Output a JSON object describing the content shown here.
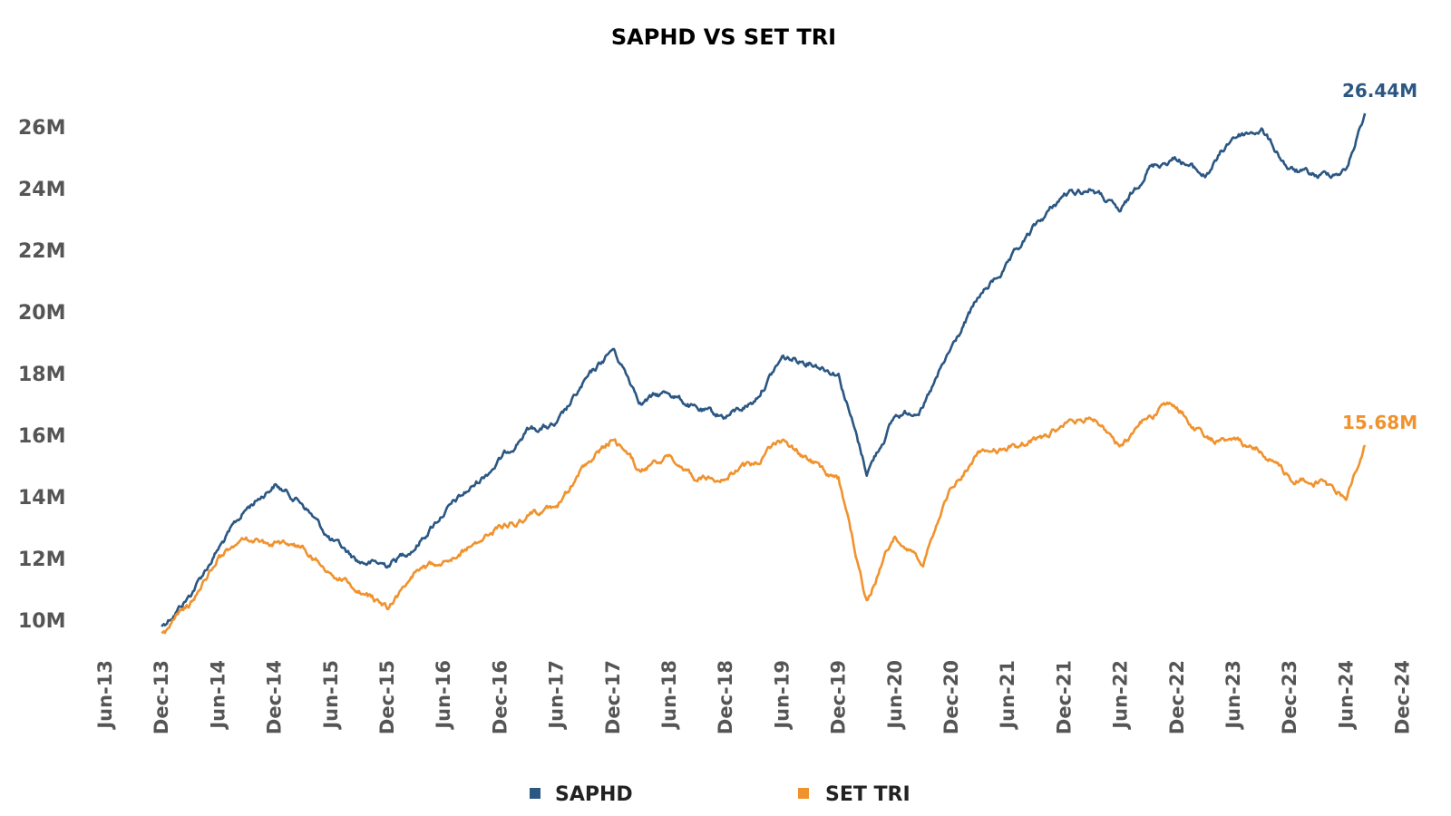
{
  "chart_data": {
    "type": "line",
    "title": "SAPHD VS SET TRI",
    "xlabel": "",
    "ylabel": "",
    "x_ticks": [
      "Jun-13",
      "Dec-13",
      "Jun-14",
      "Dec-14",
      "Jun-15",
      "Dec-15",
      "Jun-16",
      "Dec-16",
      "Jun-17",
      "Dec-17",
      "Jun-18",
      "Dec-18",
      "Jun-19",
      "Dec-19",
      "Jun-20",
      "Dec-20",
      "Jun-21",
      "Dec-21",
      "Jun-22",
      "Dec-22",
      "Jun-23",
      "Dec-23",
      "Jun-24",
      "Dec-24"
    ],
    "y_ticks": [
      "10M",
      "12M",
      "14M",
      "16M",
      "18M",
      "20M",
      "22M",
      "24M",
      "26M"
    ],
    "ylim": [
      9000000,
      27500000
    ],
    "grid": false,
    "legend_position": "bottom",
    "series": [
      {
        "name": "SAPHD",
        "color": "#2b5783",
        "end_label": "26.44M",
        "x": [
          "Dec-13",
          "Mar-14",
          "Jun-14",
          "Sep-14",
          "Dec-14",
          "Mar-15",
          "Jun-15",
          "Sep-15",
          "Dec-15",
          "Mar-16",
          "Jun-16",
          "Sep-16",
          "Dec-16",
          "Mar-17",
          "Jun-17",
          "Sep-17",
          "Dec-17",
          "Mar-18",
          "Jun-18",
          "Sep-18",
          "Dec-18",
          "Mar-19",
          "Jun-19",
          "Sep-19",
          "Dec-19",
          "Mar-20",
          "Jun-20",
          "Sep-20",
          "Dec-20",
          "Mar-21",
          "Jun-21",
          "Sep-21",
          "Dec-21",
          "Mar-22",
          "Jun-22",
          "Sep-22",
          "Dec-22",
          "Mar-23",
          "Jun-23",
          "Sep-23",
          "Dec-23",
          "Mar-24",
          "Jun-24",
          "Aug-24"
        ],
        "values": [
          9800000,
          10800000,
          12300000,
          13600000,
          14400000,
          13800000,
          12600000,
          11900000,
          11800000,
          12400000,
          13500000,
          14300000,
          15200000,
          16200000,
          16300000,
          17700000,
          18800000,
          17100000,
          17400000,
          16800000,
          16600000,
          17100000,
          18500000,
          18400000,
          18000000,
          14800000,
          16600000,
          16900000,
          18800000,
          20500000,
          21500000,
          22800000,
          23800000,
          24000000,
          23200000,
          24700000,
          25000000,
          24400000,
          25700000,
          25900000,
          24600000,
          24400000,
          24600000,
          26440000
        ]
      },
      {
        "name": "SET TRI",
        "color": "#f0922e",
        "end_label": "15.68M",
        "x": [
          "Dec-13",
          "Mar-14",
          "Jun-14",
          "Sep-14",
          "Dec-14",
          "Mar-15",
          "Jun-15",
          "Sep-15",
          "Dec-15",
          "Mar-16",
          "Jun-16",
          "Sep-16",
          "Dec-16",
          "Mar-17",
          "Jun-17",
          "Sep-17",
          "Dec-17",
          "Mar-18",
          "Jun-18",
          "Sep-18",
          "Dec-18",
          "Mar-19",
          "Jun-19",
          "Sep-19",
          "Dec-19",
          "Mar-20",
          "Jun-20",
          "Sep-20",
          "Dec-20",
          "Mar-21",
          "Jun-21",
          "Sep-21",
          "Dec-21",
          "Mar-22",
          "Jun-22",
          "Sep-22",
          "Dec-22",
          "Mar-23",
          "Jun-23",
          "Sep-23",
          "Dec-23",
          "Mar-24",
          "Jun-24",
          "Aug-24"
        ],
        "values": [
          9600000,
          10500000,
          12000000,
          12600000,
          12500000,
          12400000,
          11500000,
          11000000,
          10400000,
          11500000,
          12000000,
          12400000,
          13000000,
          13400000,
          13600000,
          15000000,
          15900000,
          14800000,
          15300000,
          14600000,
          14700000,
          15000000,
          15800000,
          15200000,
          14600000,
          10600000,
          12800000,
          11800000,
          14300000,
          15400000,
          15600000,
          15800000,
          16300000,
          16600000,
          15600000,
          16700000,
          17000000,
          15900000,
          15800000,
          15500000,
          14600000,
          14500000,
          14000000,
          15680000
        ]
      }
    ]
  }
}
